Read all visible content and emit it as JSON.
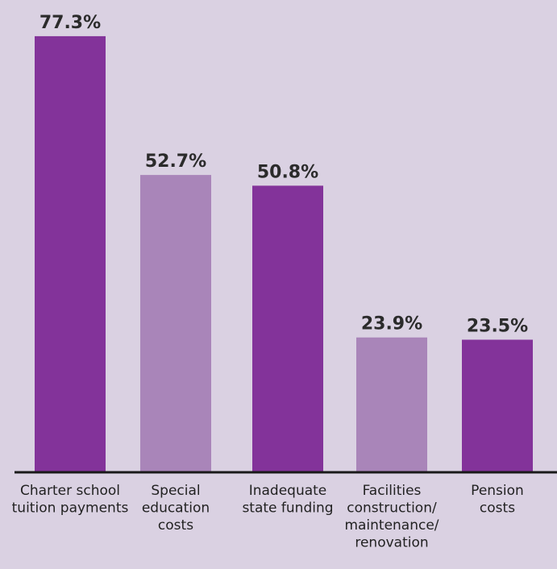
{
  "colors": {
    "background": "#dad1e2",
    "bar_dark": "#83339a",
    "bar_light": "#a985b9",
    "axis": "#1a1a1a"
  },
  "chart_data": {
    "type": "bar",
    "categories": [
      "Charter school tuition payments",
      "Special education costs",
      "Inadequate state funding",
      "Facilities construction/ maintenance/ renovation",
      "Pension costs"
    ],
    "category_lines": [
      [
        "Charter school",
        "tuition payments"
      ],
      [
        "Special",
        "education",
        "costs"
      ],
      [
        "Inadequate",
        "state funding"
      ],
      [
        "Facilities",
        "construction/",
        "maintenance/",
        "renovation"
      ],
      [
        "Pension",
        "costs"
      ]
    ],
    "values": [
      77.3,
      52.7,
      50.8,
      23.9,
      23.5
    ],
    "value_labels": [
      "77.3%",
      "52.7%",
      "50.8%",
      "23.9%",
      "23.5%"
    ],
    "bar_colors": [
      "#83339a",
      "#a985b9",
      "#83339a",
      "#a985b9",
      "#83339a"
    ],
    "title": "",
    "xlabel": "",
    "ylabel": "",
    "ylim": [
      0,
      100
    ],
    "grid": false,
    "legend": "none"
  }
}
